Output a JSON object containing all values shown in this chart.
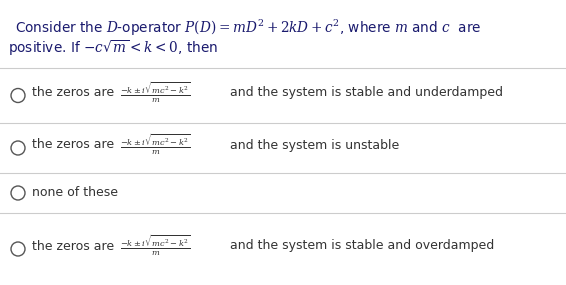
{
  "title_line1": "Consider the $\\mathit{D}$-operator $\\mathit{P}(\\mathit{D}) = m\\mathit{D}^2 + 2k\\mathit{D} + c^2$, where $m$ and $c$  are",
  "title_line2": "positive. If $-c\\sqrt{m} < k < 0$, then",
  "formula": "$\\frac{-k \\pm i\\sqrt{mc^2 - k^2}}{m}$",
  "options": [
    {
      "has_formula": true,
      "prefix": "the zeros are",
      "tail": "and the system is stable and underdamped"
    },
    {
      "has_formula": true,
      "prefix": "the zeros are",
      "tail": "and the system is unstable"
    },
    {
      "has_formula": false,
      "prefix": "",
      "tail": "none of these"
    },
    {
      "has_formula": true,
      "prefix": "the zeros are",
      "tail": "and the system is stable and overdamped"
    }
  ],
  "bg_color": "#ffffff",
  "text_color": "#333333",
  "title_color": "#1a1a6e",
  "formula_color": "#333333",
  "circle_color": "#555555",
  "divider_color": "#cccccc",
  "title_fontsize": 9.8,
  "body_fontsize": 9.0,
  "formula_fontsize": 8.5
}
